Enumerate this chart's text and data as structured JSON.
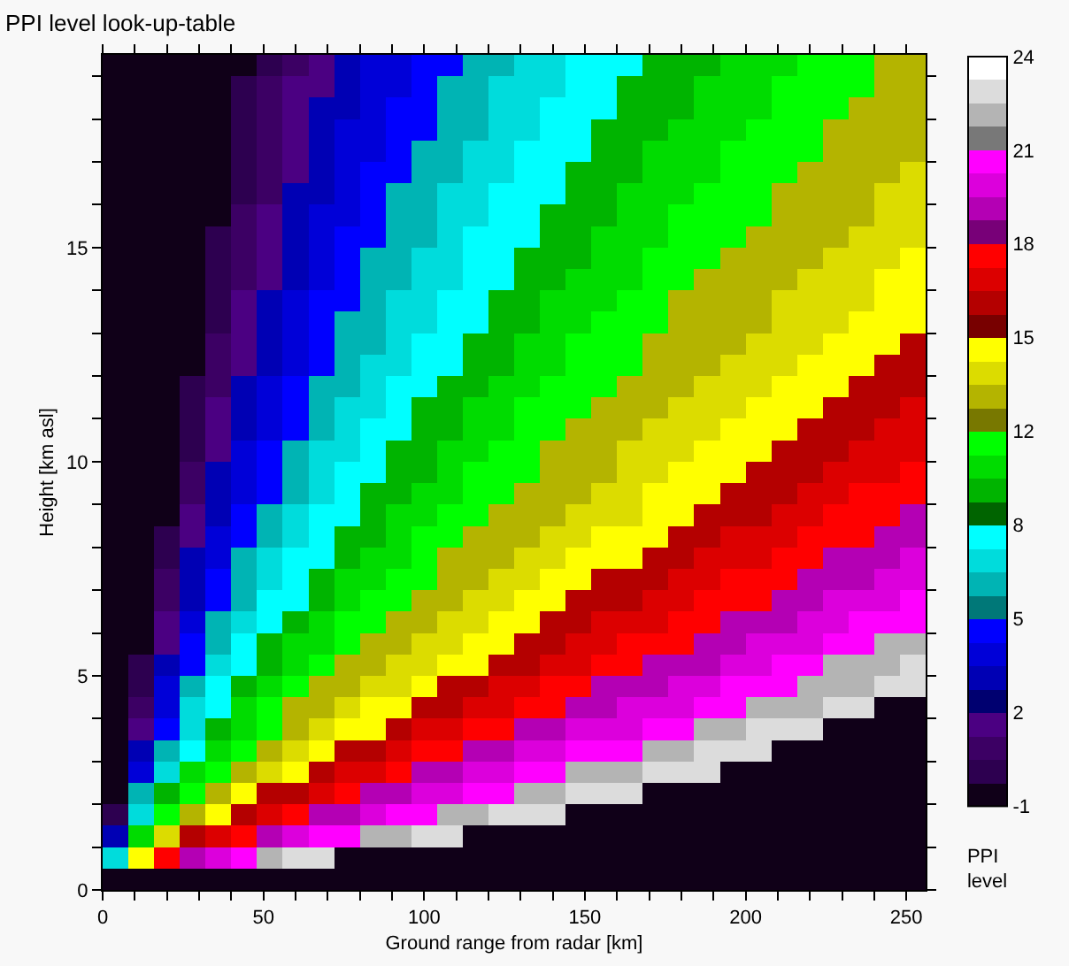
{
  "chart_data": {
    "type": "heatmap",
    "title": "PPI level look-up-table",
    "xlabel": "Ground range from radar [km]",
    "ylabel": "Height [km asl]",
    "clabel": "PPI level",
    "xlim": [
      0,
      256
    ],
    "ylim": [
      0,
      19.5
    ],
    "xticks": [
      0,
      {
        "value": 10,
        "label": null
      },
      {
        "value": 20,
        "label": null
      },
      {
        "value": 30,
        "label": null
      },
      {
        "value": 40,
        "label": null
      },
      50,
      {
        "value": 60,
        "label": null
      },
      {
        "value": 70,
        "label": null
      },
      {
        "value": 80,
        "label": null
      },
      {
        "value": 90,
        "label": null
      },
      100,
      {
        "value": 110,
        "label": null
      },
      {
        "value": 120,
        "label": null
      },
      {
        "value": 130,
        "label": null
      },
      {
        "value": 140,
        "label": null
      },
      150,
      {
        "value": 160,
        "label": null
      },
      {
        "value": 170,
        "label": null
      },
      {
        "value": 180,
        "label": null
      },
      {
        "value": 190,
        "label": null
      },
      200,
      {
        "value": 210,
        "label": null
      },
      {
        "value": 220,
        "label": null
      },
      {
        "value": 230,
        "label": null
      },
      {
        "value": 240,
        "label": null
      },
      250
    ],
    "yticks": [
      0,
      {
        "value": 1,
        "label": null
      },
      {
        "value": 2,
        "label": null
      },
      {
        "value": 3,
        "label": null
      },
      {
        "value": 4,
        "label": null
      },
      5,
      {
        "value": 6,
        "label": null
      },
      {
        "value": 7,
        "label": null
      },
      {
        "value": 8,
        "label": null
      },
      {
        "value": 9,
        "label": null
      },
      10,
      {
        "value": 11,
        "label": null
      },
      {
        "value": 12,
        "label": null
      },
      {
        "value": 13,
        "label": null
      },
      {
        "value": 14,
        "label": null
      },
      15,
      {
        "value": 16,
        "label": null
      },
      {
        "value": 17,
        "label": null
      },
      {
        "value": 18,
        "label": null
      },
      {
        "value": 19,
        "label": null
      }
    ],
    "clim": [
      -1,
      24
    ],
    "cticks": [
      -1,
      {
        "value": 2.125,
        "label": "2"
      },
      {
        "value": 5.25,
        "label": "5"
      },
      {
        "value": 8.375,
        "label": "8"
      },
      {
        "value": 11.5,
        "label": "12"
      },
      {
        "value": 14.625,
        "label": "15"
      },
      {
        "value": 17.75,
        "label": "18"
      },
      {
        "value": 20.875,
        "label": "21"
      },
      24
    ],
    "colors": [
      "#100018",
      "#2d0050",
      "#3c0064",
      "#4b0082",
      "#000070",
      "#0000b4",
      "#0000d8",
      "#0000ff",
      "#007878",
      "#00b4b4",
      "#00dcdc",
      "#00ffff",
      "#006400",
      "#00b400",
      "#00dc00",
      "#00ff00",
      "#787800",
      "#b4b400",
      "#dcdc00",
      "#ffff00",
      "#780000",
      "#b40000",
      "#dc0000",
      "#ff0000",
      "#780078",
      "#b400b4",
      "#dc00dc",
      "#ff00ff",
      "#787878",
      "#b4b4b4",
      "#dcdcdc",
      "#ffffff"
    ],
    "x": [
      4,
      12,
      20,
      28,
      36,
      44,
      52,
      60,
      68,
      76,
      84,
      92,
      100,
      108,
      116,
      124,
      132,
      140,
      148,
      156,
      164,
      172,
      180,
      188,
      196,
      204,
      212,
      220,
      228,
      236,
      244,
      252
    ],
    "y": [
      19.25,
      18.75,
      18.25,
      17.75,
      17.25,
      16.75,
      16.25,
      15.75,
      15.25,
      14.75,
      14.25,
      13.75,
      13.25,
      12.75,
      12.25,
      11.75,
      11.25,
      10.75,
      10.25,
      9.75,
      9.25,
      8.75,
      8.25,
      7.75,
      7.25,
      6.75,
      6.25,
      5.75,
      5.25,
      4.75,
      4.25,
      3.75,
      3.25,
      2.75,
      2.25,
      1.75,
      1.25,
      0.75,
      0.25
    ],
    "cells": [
      [
        -1,
        -1,
        -1,
        -1,
        -1,
        -1,
        0.2,
        1,
        1.7,
        3.3,
        4.1,
        4.1,
        4.9,
        4.9,
        6.4,
        6.4,
        7.2,
        7.2,
        8,
        8,
        8,
        9.5,
        9.5,
        9.5,
        10.3,
        10.3,
        10.3,
        11.1,
        11.1,
        11.1,
        12.7,
        12.7
      ],
      [
        -1,
        -1,
        -1,
        -1,
        -1,
        0.2,
        1,
        1.7,
        1.7,
        3.3,
        4.1,
        4.1,
        4.9,
        6.4,
        6.4,
        7.2,
        7.2,
        7.2,
        8,
        8,
        9.5,
        9.5,
        9.5,
        10.3,
        10.3,
        10.3,
        11.1,
        11.1,
        11.1,
        11.1,
        12.7,
        12.7
      ],
      [
        -1,
        -1,
        -1,
        -1,
        -1,
        0.2,
        1,
        1.7,
        3.3,
        3.3,
        4.1,
        4.9,
        4.9,
        6.4,
        6.4,
        7.2,
        7.2,
        8,
        8,
        8,
        9.5,
        9.5,
        9.5,
        10.3,
        10.3,
        10.3,
        11.1,
        11.1,
        11.1,
        12.7,
        12.7,
        12.7
      ],
      [
        -1,
        -1,
        -1,
        -1,
        -1,
        0.2,
        1,
        1.7,
        3.3,
        4.1,
        4.1,
        4.9,
        4.9,
        6.4,
        6.4,
        7.2,
        7.2,
        8,
        8,
        9.5,
        9.5,
        9.5,
        10.3,
        10.3,
        10.3,
        11.1,
        11.1,
        11.1,
        12.7,
        12.7,
        12.7,
        12.7
      ],
      [
        -1,
        -1,
        -1,
        -1,
        -1,
        0.2,
        1,
        1.7,
        3.3,
        4.1,
        4.1,
        4.9,
        6.4,
        6.4,
        7.2,
        7.2,
        8,
        8,
        8,
        9.5,
        9.5,
        10.3,
        10.3,
        10.3,
        11.1,
        11.1,
        11.1,
        11.1,
        12.7,
        12.7,
        12.7,
        12.7
      ],
      [
        -1,
        -1,
        -1,
        -1,
        -1,
        0.2,
        1,
        1.7,
        3.3,
        4.1,
        4.9,
        4.9,
        6.4,
        6.4,
        7.2,
        7.2,
        8,
        8,
        9.5,
        9.5,
        9.5,
        10.3,
        10.3,
        10.3,
        11.1,
        11.1,
        11.1,
        12.7,
        12.7,
        12.7,
        12.7,
        13.5
      ],
      [
        -1,
        -1,
        -1,
        -1,
        -1,
        0.2,
        1,
        3.3,
        3.3,
        4.1,
        4.9,
        6.4,
        6.4,
        7.2,
        7.2,
        8,
        8,
        8,
        9.5,
        9.5,
        10.3,
        10.3,
        10.3,
        11.1,
        11.1,
        11.1,
        12.7,
        12.7,
        12.7,
        12.7,
        13.5,
        13.5
      ],
      [
        -1,
        -1,
        -1,
        -1,
        -1,
        1,
        1.7,
        3.3,
        4.1,
        4.1,
        4.9,
        6.4,
        6.4,
        7.2,
        7.2,
        8,
        8,
        9.5,
        9.5,
        9.5,
        10.3,
        10.3,
        11.1,
        11.1,
        11.1,
        11.1,
        12.7,
        12.7,
        12.7,
        12.7,
        13.5,
        13.5
      ],
      [
        -1,
        -1,
        -1,
        -1,
        0.2,
        1,
        1.7,
        3.3,
        4.1,
        4.9,
        4.9,
        6.4,
        6.4,
        7.2,
        8,
        8,
        8,
        9.5,
        9.5,
        10.3,
        10.3,
        10.3,
        11.1,
        11.1,
        11.1,
        12.7,
        12.7,
        12.7,
        12.7,
        13.5,
        13.5,
        13.5
      ],
      [
        -1,
        -1,
        -1,
        -1,
        0.2,
        1,
        1.7,
        3.3,
        4.1,
        4.9,
        6.4,
        6.4,
        7.2,
        7.2,
        8,
        8,
        9.5,
        9.5,
        9.5,
        10.3,
        10.3,
        11.1,
        11.1,
        11.1,
        12.7,
        12.7,
        12.7,
        12.7,
        13.5,
        13.5,
        13.5,
        14.2
      ],
      [
        -1,
        -1,
        -1,
        -1,
        0.2,
        1,
        1.7,
        3.3,
        4.1,
        4.9,
        6.4,
        6.4,
        7.2,
        7.2,
        8,
        8,
        9.5,
        9.5,
        10.3,
        10.3,
        10.3,
        11.1,
        11.1,
        12.7,
        12.7,
        12.7,
        12.7,
        13.5,
        13.5,
        13.5,
        14.2,
        14.2
      ],
      [
        -1,
        -1,
        -1,
        -1,
        0.2,
        1.7,
        3.3,
        4.1,
        4.9,
        4.9,
        6.4,
        7.2,
        7.2,
        8,
        8,
        9.5,
        9.5,
        10.3,
        10.3,
        10.3,
        11.1,
        11.1,
        12.7,
        12.7,
        12.7,
        12.7,
        13.5,
        13.5,
        13.5,
        13.5,
        14.2,
        14.2
      ],
      [
        -1,
        -1,
        -1,
        -1,
        0.2,
        1.7,
        3.3,
        4.1,
        4.9,
        6.4,
        6.4,
        7.2,
        7.2,
        8,
        8,
        9.5,
        9.5,
        10.3,
        10.3,
        11.1,
        11.1,
        11.1,
        12.7,
        12.7,
        12.7,
        12.7,
        13.5,
        13.5,
        13.5,
        14.2,
        14.2,
        14.2
      ],
      [
        -1,
        -1,
        -1,
        -1,
        1,
        1.7,
        3.3,
        4.1,
        4.9,
        6.4,
        6.4,
        7.2,
        8,
        8,
        9.5,
        9.5,
        10.3,
        10.3,
        11.1,
        11.1,
        11.1,
        12.7,
        12.7,
        12.7,
        12.7,
        13.5,
        13.5,
        13.5,
        14.2,
        14.2,
        14.2,
        15.8
      ],
      [
        -1,
        -1,
        -1,
        -1,
        1,
        1.7,
        3.3,
        4.1,
        4.9,
        6.4,
        7.2,
        7.2,
        8,
        8,
        9.5,
        9.5,
        10.3,
        10.3,
        11.1,
        11.1,
        11.1,
        12.7,
        12.7,
        12.7,
        13.5,
        13.5,
        13.5,
        14.2,
        14.2,
        14.2,
        15.8,
        15.8
      ],
      [
        -1,
        -1,
        -1,
        0.2,
        1,
        3.3,
        4.1,
        4.9,
        6.4,
        6.4,
        7.2,
        8,
        8,
        9.5,
        9.5,
        10.3,
        10.3,
        11.1,
        11.1,
        11.1,
        12.7,
        12.7,
        12.7,
        13.5,
        13.5,
        13.5,
        14.2,
        14.2,
        14.2,
        15.8,
        15.8,
        15.8
      ],
      [
        -1,
        -1,
        -1,
        0.2,
        1.7,
        3.3,
        4.1,
        4.9,
        6.4,
        7.2,
        7.2,
        8,
        9.5,
        9.5,
        10.3,
        10.3,
        11.1,
        11.1,
        11.1,
        12.7,
        12.7,
        12.7,
        13.5,
        13.5,
        13.5,
        14.2,
        14.2,
        14.2,
        15.8,
        15.8,
        15.8,
        16.6
      ],
      [
        -1,
        -1,
        -1,
        0.2,
        1.7,
        3.3,
        4.1,
        4.9,
        6.4,
        7.2,
        8,
        8,
        9.5,
        9.5,
        10.3,
        10.3,
        11.1,
        11.1,
        12.7,
        12.7,
        12.7,
        13.5,
        13.5,
        13.5,
        14.2,
        14.2,
        14.2,
        15.8,
        15.8,
        15.8,
        16.6,
        16.6
      ],
      [
        -1,
        -1,
        -1,
        0.2,
        1.7,
        4.1,
        4.9,
        6.4,
        7.2,
        7.2,
        8,
        9.5,
        9.5,
        10.3,
        10.3,
        11.1,
        11.1,
        12.7,
        12.7,
        12.7,
        13.5,
        13.5,
        13.5,
        14.2,
        14.2,
        14.2,
        15.8,
        15.8,
        15.8,
        16.6,
        16.6,
        16.6
      ],
      [
        -1,
        -1,
        -1,
        1,
        3.3,
        4.1,
        4.9,
        6.4,
        7.2,
        8,
        8,
        9.5,
        9.5,
        10.3,
        11.1,
        11.1,
        11.1,
        12.7,
        12.7,
        12.7,
        13.5,
        13.5,
        14.2,
        14.2,
        14.2,
        15.8,
        15.8,
        15.8,
        16.6,
        16.6,
        16.6,
        17.4
      ],
      [
        -1,
        -1,
        -1,
        1,
        3.3,
        4.1,
        4.9,
        6.4,
        7.2,
        8,
        9.5,
        9.5,
        10.3,
        10.3,
        11.1,
        11.1,
        12.7,
        12.7,
        12.7,
        13.5,
        13.5,
        14.2,
        14.2,
        14.2,
        15.8,
        15.8,
        15.8,
        16.6,
        16.6,
        17.4,
        17.4,
        17.4
      ],
      [
        -1,
        -1,
        -1,
        1.7,
        3.3,
        4.9,
        6.4,
        7.2,
        8,
        8,
        9.5,
        10.3,
        10.3,
        11.1,
        11.1,
        12.7,
        12.7,
        12.7,
        13.5,
        13.5,
        13.5,
        14.2,
        14.2,
        15.8,
        15.8,
        15.8,
        16.6,
        16.6,
        17.4,
        17.4,
        17.4,
        18.9
      ],
      [
        -1,
        -1,
        0.2,
        1.7,
        4.1,
        4.9,
        6.4,
        7.2,
        8,
        9.5,
        9.5,
        10.3,
        11.1,
        11.1,
        12.7,
        12.7,
        12.7,
        13.5,
        13.5,
        14.2,
        14.2,
        14.2,
        15.8,
        15.8,
        16.6,
        16.6,
        16.6,
        17.4,
        17.4,
        17.4,
        18.9,
        18.9
      ],
      [
        -1,
        -1,
        0.2,
        3.3,
        4.1,
        6.4,
        7.2,
        8,
        8,
        9.5,
        10.3,
        10.3,
        11.1,
        12.7,
        12.7,
        12.7,
        13.5,
        13.5,
        14.2,
        14.2,
        14.2,
        15.8,
        15.8,
        16.6,
        16.6,
        16.6,
        17.4,
        17.4,
        18.9,
        18.9,
        18.9,
        19.7
      ],
      [
        -1,
        -1,
        1,
        3.3,
        4.9,
        6.4,
        7.2,
        8,
        9.5,
        10.3,
        10.3,
        11.1,
        11.1,
        12.7,
        12.7,
        13.5,
        13.5,
        14.2,
        14.2,
        15.8,
        15.8,
        15.8,
        16.6,
        16.6,
        17.4,
        17.4,
        17.4,
        18.9,
        18.9,
        18.9,
        19.7,
        19.7
      ],
      [
        -1,
        -1,
        1,
        3.3,
        4.9,
        6.4,
        8,
        8,
        9.5,
        10.3,
        11.1,
        11.1,
        12.7,
        12.7,
        13.5,
        13.5,
        14.2,
        14.2,
        15.8,
        15.8,
        15.8,
        16.6,
        16.6,
        17.4,
        17.4,
        17.4,
        18.9,
        18.9,
        19.7,
        19.7,
        19.7,
        20.5
      ],
      [
        -1,
        -1,
        1.7,
        4.1,
        6.4,
        7.2,
        8,
        9.5,
        10.3,
        11.1,
        11.1,
        12.7,
        12.7,
        13.5,
        13.5,
        14.2,
        14.2,
        15.8,
        15.8,
        16.6,
        16.6,
        16.6,
        17.4,
        17.4,
        18.9,
        18.9,
        18.9,
        19.7,
        19.7,
        20.5,
        20.5,
        20.5
      ],
      [
        -1,
        -1,
        1.7,
        4.9,
        6.4,
        8,
        9.5,
        10.3,
        10.3,
        11.1,
        12.7,
        12.7,
        13.5,
        13.5,
        14.2,
        14.2,
        15.8,
        15.8,
        16.6,
        16.6,
        17.4,
        17.4,
        17.4,
        18.9,
        18.9,
        19.7,
        19.7,
        19.7,
        20.5,
        20.5,
        22,
        22
      ],
      [
        -1,
        0.2,
        3.3,
        4.9,
        7.2,
        8,
        9.5,
        10.3,
        11.1,
        12.7,
        12.7,
        13.5,
        13.5,
        14.2,
        14.2,
        15.8,
        15.8,
        16.6,
        16.6,
        17.4,
        17.4,
        18.9,
        18.9,
        18.9,
        19.7,
        19.7,
        20.5,
        20.5,
        22,
        22,
        22,
        22.8
      ],
      [
        -1,
        0.2,
        4.1,
        6.4,
        8,
        9.5,
        10.3,
        11.1,
        12.7,
        12.7,
        13.5,
        13.5,
        14.2,
        15.8,
        15.8,
        16.6,
        16.6,
        17.4,
        17.4,
        18.9,
        18.9,
        18.9,
        19.7,
        19.7,
        20.5,
        20.5,
        20.5,
        22,
        22,
        22,
        22.8,
        22.8
      ],
      [
        -1,
        1,
        4.1,
        7.2,
        8,
        10.3,
        11.1,
        12.7,
        12.7,
        13.5,
        14.2,
        14.2,
        15.8,
        15.8,
        16.6,
        16.6,
        17.4,
        17.4,
        18.9,
        18.9,
        19.7,
        19.7,
        19.7,
        20.5,
        20.5,
        22,
        22,
        22,
        22.8,
        22.8,
        -1,
        -1
      ],
      [
        -1,
        1.7,
        4.9,
        7.2,
        9.5,
        10.3,
        11.1,
        12.7,
        13.5,
        14.2,
        14.2,
        15.8,
        16.6,
        16.6,
        17.4,
        17.4,
        18.9,
        18.9,
        19.7,
        19.7,
        19.7,
        20.5,
        20.5,
        22,
        22,
        22.8,
        22.8,
        22.8,
        -1,
        -1,
        -1,
        -1
      ],
      [
        -1,
        3.3,
        6.4,
        8,
        10.3,
        11.1,
        12.7,
        13.5,
        14.2,
        15.8,
        15.8,
        16.6,
        17.4,
        17.4,
        18.9,
        18.9,
        19.7,
        19.7,
        20.5,
        20.5,
        20.5,
        22,
        22,
        22.8,
        22.8,
        22.8,
        -1,
        -1,
        -1,
        -1,
        -1,
        -1
      ],
      [
        -1,
        4.1,
        7.2,
        10.3,
        11.1,
        12.7,
        13.5,
        14.2,
        15.8,
        16.6,
        16.6,
        17.4,
        18.9,
        18.9,
        19.7,
        19.7,
        20.5,
        20.5,
        22,
        22,
        22,
        22.8,
        22.8,
        22.8,
        -1,
        -1,
        -1,
        -1,
        -1,
        -1,
        -1,
        -1
      ],
      [
        -1,
        6.4,
        9.5,
        11.1,
        12.7,
        14.2,
        15.8,
        15.8,
        16.6,
        17.4,
        18.9,
        18.9,
        19.7,
        19.7,
        20.5,
        20.5,
        22,
        22,
        22.8,
        22.8,
        22.8,
        -1,
        -1,
        -1,
        -1,
        -1,
        -1,
        -1,
        -1,
        -1,
        -1,
        -1
      ],
      [
        0.2,
        7.2,
        11.1,
        12.7,
        14.2,
        15.8,
        16.6,
        17.4,
        18.9,
        18.9,
        19.7,
        20.5,
        20.5,
        22,
        22,
        22.8,
        22.8,
        22.8,
        -1,
        -1,
        -1,
        -1,
        -1,
        -1,
        -1,
        -1,
        -1,
        -1,
        -1,
        -1,
        -1,
        -1
      ],
      [
        3.3,
        10.3,
        13.5,
        15.8,
        16.6,
        17.4,
        18.9,
        19.7,
        20.5,
        20.5,
        22,
        22,
        22.8,
        22.8,
        -1,
        -1,
        -1,
        -1,
        -1,
        -1,
        -1,
        -1,
        -1,
        -1,
        -1,
        -1,
        -1,
        -1,
        -1,
        -1,
        -1,
        -1
      ],
      [
        7.2,
        14.2,
        17.4,
        18.9,
        19.7,
        20.5,
        22,
        22.8,
        22.8,
        -1,
        -1,
        -1,
        -1,
        -1,
        -1,
        -1,
        -1,
        -1,
        -1,
        -1,
        -1,
        -1,
        -1,
        -1,
        -1,
        -1,
        -1,
        -1,
        -1,
        -1,
        -1,
        -1
      ],
      [
        -1,
        -1,
        -1,
        -1,
        -1,
        -1,
        -1,
        -1,
        -1,
        -1,
        -1,
        -1,
        -1,
        -1,
        -1,
        -1,
        -1,
        -1,
        -1,
        -1,
        -1,
        -1,
        -1,
        -1,
        -1,
        -1,
        -1,
        -1,
        -1,
        -1,
        -1,
        -1
      ]
    ]
  }
}
